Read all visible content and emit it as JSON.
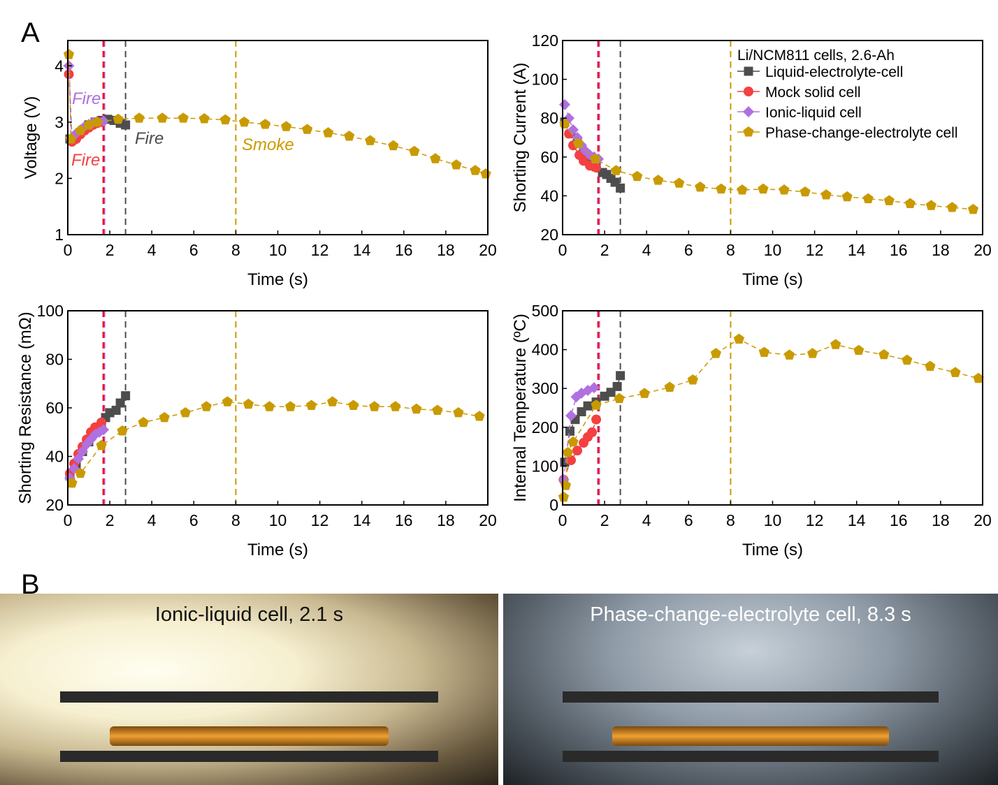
{
  "panel_labels": {
    "a": "A",
    "b": "B"
  },
  "colors": {
    "liquid": "#4d4d4d",
    "mock": "#f44040",
    "ionic": "#b070e0",
    "phase": "#c99a00",
    "fire_line": "#ee1133"
  },
  "legend": {
    "title": "Li/NCM811 cells, 2.6-Ah",
    "items": [
      "Liquid-electrolyte-cell",
      "Mock solid cell",
      "Ionic-liquid cell",
      "Phase-change-electrolyte cell"
    ]
  },
  "annotations": {
    "fire_ionic": "Fire",
    "fire_mock": "Fire",
    "fire_liquid": "Fire",
    "smoke_phase": "Smoke"
  },
  "chart_data": [
    {
      "type": "scatter-line",
      "id": "voltage",
      "xlabel": "Time (s)",
      "ylabel": "Voltage (V)",
      "xlim": [
        0,
        20
      ],
      "ylim": [
        1,
        4.45
      ],
      "xticks": [
        0,
        2,
        4,
        6,
        8,
        10,
        12,
        14,
        16,
        18,
        20
      ],
      "yticks": [
        1,
        2,
        3,
        4
      ],
      "vlines": [
        {
          "x": 1.7,
          "color": "fire"
        },
        {
          "x": 2.75,
          "color": "liquid"
        },
        {
          "x": 8,
          "color": "phase"
        }
      ],
      "series": [
        {
          "name": "Liquid-electrolyte-cell",
          "key": "liquid",
          "x": [
            0.1,
            0.4,
            0.7,
            1.0,
            1.3,
            1.6,
            1.9,
            2.2,
            2.5,
            2.75
          ],
          "y": [
            2.7,
            2.75,
            2.85,
            2.95,
            3.0,
            3.03,
            3.05,
            3.03,
            2.98,
            2.95
          ]
        },
        {
          "name": "Mock solid cell",
          "key": "mock",
          "x": [
            0.05,
            0.2,
            0.4,
            0.6,
            0.8,
            1.0,
            1.2,
            1.4,
            1.6
          ],
          "y": [
            3.85,
            2.65,
            2.7,
            2.78,
            2.85,
            2.9,
            2.95,
            2.98,
            3.0
          ]
        },
        {
          "name": "Ionic-liquid cell",
          "key": "ionic",
          "x": [
            0.05,
            0.2,
            0.4,
            0.6,
            0.8,
            1.0,
            1.2,
            1.4,
            1.7
          ],
          "y": [
            4.0,
            2.72,
            2.8,
            2.86,
            2.92,
            2.96,
            2.99,
            3.01,
            3.02
          ]
        },
        {
          "name": "Phase-change-electrolyte cell",
          "key": "phase",
          "x": [
            0.05,
            0.15,
            0.6,
            1.0,
            1.4,
            2.4,
            3.4,
            4.5,
            5.5,
            6.5,
            7.5,
            8.4,
            9.4,
            10.4,
            11.4,
            12.4,
            13.4,
            14.4,
            15.5,
            16.5,
            17.5,
            18.5,
            19.4,
            19.9
          ],
          "y": [
            4.2,
            2.7,
            2.85,
            2.95,
            3.0,
            3.05,
            3.07,
            3.07,
            3.07,
            3.06,
            3.04,
            3.0,
            2.96,
            2.92,
            2.87,
            2.81,
            2.75,
            2.67,
            2.58,
            2.48,
            2.35,
            2.24,
            2.14,
            2.08
          ]
        }
      ]
    },
    {
      "type": "scatter-line",
      "id": "current",
      "xlabel": "Time (s)",
      "ylabel": "Shorting Current (A)",
      "xlim": [
        0,
        20
      ],
      "ylim": [
        20,
        120
      ],
      "xticks": [
        0,
        2,
        4,
        6,
        8,
        10,
        12,
        14,
        16,
        18,
        20
      ],
      "yticks": [
        20,
        40,
        60,
        80,
        100,
        120
      ],
      "vlines": [
        {
          "x": 1.7,
          "color": "fire"
        },
        {
          "x": 2.75,
          "color": "liquid"
        },
        {
          "x": 8,
          "color": "phase"
        }
      ],
      "series": [
        {
          "name": "Liquid-electrolyte-cell",
          "key": "liquid",
          "x": [
            0.1,
            0.4,
            0.7,
            1.0,
            1.3,
            1.6,
            1.9,
            2.1,
            2.3,
            2.5,
            2.75
          ],
          "y": [
            78,
            72,
            67,
            62,
            58,
            55,
            52,
            51,
            49,
            47,
            44
          ]
        },
        {
          "name": "Mock solid cell",
          "key": "mock",
          "x": [
            0.3,
            0.5,
            0.8,
            1.0,
            1.3,
            1.6
          ],
          "y": [
            72,
            66,
            61,
            58,
            55.5,
            54.5
          ]
        },
        {
          "name": "Ionic-liquid cell",
          "key": "ionic",
          "x": [
            0.1,
            0.3,
            0.5,
            0.7,
            0.9,
            1.1,
            1.3,
            1.5,
            1.7
          ],
          "y": [
            87,
            80,
            74,
            70,
            66,
            63,
            61,
            60,
            59
          ]
        },
        {
          "name": "Phase-change-electrolyte cell",
          "key": "phase",
          "x": [
            0.1,
            0.75,
            1.55,
            2.55,
            3.55,
            4.55,
            5.55,
            6.55,
            7.55,
            8.55,
            9.55,
            10.55,
            11.55,
            12.55,
            13.55,
            14.55,
            15.55,
            16.55,
            17.55,
            18.55,
            19.55
          ],
          "y": [
            77,
            67,
            59,
            53,
            50,
            48,
            46.5,
            44.5,
            43.5,
            43,
            43.5,
            43,
            42,
            40.5,
            39.5,
            38.5,
            37.5,
            36,
            35,
            34,
            33
          ]
        }
      ]
    },
    {
      "type": "scatter-line",
      "id": "resistance",
      "xlabel": "Time (s)",
      "ylabel": "Shorting Resistance (mΩ)",
      "xlim": [
        0,
        20
      ],
      "ylim": [
        20,
        100
      ],
      "xticks": [
        0,
        2,
        4,
        6,
        8,
        10,
        12,
        14,
        16,
        18,
        20
      ],
      "yticks": [
        20,
        40,
        60,
        80,
        100
      ],
      "vlines": [
        {
          "x": 1.7,
          "color": "fire"
        },
        {
          "x": 2.75,
          "color": "liquid"
        },
        {
          "x": 8,
          "color": "phase"
        }
      ],
      "series": [
        {
          "name": "Liquid-electrolyte-cell",
          "key": "liquid",
          "x": [
            0.1,
            0.4,
            0.7,
            1.0,
            1.3,
            1.6,
            1.8,
            2.0,
            2.3,
            2.5,
            2.75
          ],
          "y": [
            32,
            37,
            42,
            46,
            50,
            53,
            56,
            58,
            59,
            62,
            65
          ]
        },
        {
          "name": "Mock solid cell",
          "key": "mock",
          "x": [
            0.1,
            0.3,
            0.5,
            0.7,
            0.9,
            1.1,
            1.3,
            1.6
          ],
          "y": [
            33,
            37,
            41,
            44,
            47,
            50,
            52,
            54
          ]
        },
        {
          "name": "Ionic-liquid cell",
          "key": "ionic",
          "x": [
            0.1,
            0.3,
            0.5,
            0.7,
            0.9,
            1.1,
            1.3,
            1.5,
            1.7
          ],
          "y": [
            31,
            35,
            39,
            42,
            45,
            47,
            49,
            50,
            51
          ]
        },
        {
          "name": "Phase-change-electrolyte cell",
          "key": "phase",
          "x": [
            0.2,
            0.6,
            1.6,
            2.6,
            3.6,
            4.6,
            5.6,
            6.6,
            7.6,
            8.6,
            9.6,
            10.6,
            11.6,
            12.6,
            13.6,
            14.6,
            15.6,
            16.6,
            17.6,
            18.6,
            19.6
          ],
          "y": [
            29,
            33,
            44.5,
            50.5,
            54,
            56,
            58,
            60.5,
            62.5,
            61.5,
            60.5,
            60.5,
            61,
            62.5,
            61,
            60.5,
            60.5,
            59.5,
            59,
            58,
            56.5
          ]
        }
      ]
    },
    {
      "type": "scatter-line",
      "id": "temperature",
      "xlabel": "Time (s)",
      "ylabel": "Internal Temperature (ºC)",
      "xlim": [
        0,
        20
      ],
      "ylim": [
        0,
        500
      ],
      "xticks": [
        0,
        2,
        4,
        6,
        8,
        10,
        12,
        14,
        16,
        18,
        20
      ],
      "yticks": [
        0,
        100,
        200,
        300,
        400,
        500
      ],
      "vlines": [
        {
          "x": 1.7,
          "color": "fire"
        },
        {
          "x": 2.75,
          "color": "liquid"
        },
        {
          "x": 8,
          "color": "phase"
        }
      ],
      "series": [
        {
          "name": "Liquid-electrolyte-cell",
          "key": "liquid",
          "x": [
            0.1,
            0.35,
            0.6,
            0.9,
            1.2,
            1.6,
            2.0,
            2.3,
            2.6,
            2.75
          ],
          "y": [
            110,
            190,
            220,
            240,
            255,
            265,
            280,
            290,
            305,
            333
          ]
        },
        {
          "name": "Mock solid cell",
          "key": "mock",
          "x": [
            0.05,
            0.4,
            0.7,
            1.0,
            1.2,
            1.4,
            1.6
          ],
          "y": [
            65,
            115,
            140,
            160,
            175,
            187,
            220
          ]
        },
        {
          "name": "Ionic-liquid cell",
          "key": "ionic",
          "x": [
            0.05,
            0.4,
            0.65,
            0.9,
            1.2,
            1.5
          ],
          "y": [
            65,
            230,
            278,
            288,
            295,
            302
          ]
        },
        {
          "name": "Phase-change-electrolyte cell",
          "key": "phase",
          "x": [
            0.05,
            0.15,
            0.25,
            0.5,
            1.6,
            2.7,
            3.9,
            5.1,
            6.2,
            7.3,
            8.4,
            9.6,
            10.8,
            11.9,
            13.0,
            14.1,
            15.3,
            16.4,
            17.5,
            18.7,
            19.8
          ],
          "y": [
            20,
            50,
            135,
            162,
            257,
            274,
            287,
            303,
            322,
            390,
            427,
            393,
            386,
            390,
            413,
            398,
            387,
            373,
            357,
            341,
            326
          ]
        }
      ]
    }
  ],
  "photos": [
    {
      "caption": "Ionic-liquid cell, 2.1 s"
    },
    {
      "caption": "Phase-change-electrolyte cell, 8.3 s"
    }
  ]
}
